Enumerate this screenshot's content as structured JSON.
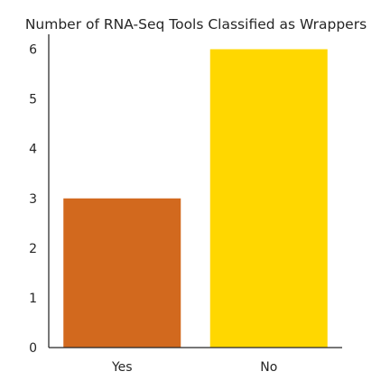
{
  "chart_data": {
    "type": "bar",
    "title": "Number of RNA-Seq Tools Classified as Wrappers",
    "xlabel": "",
    "ylabel": "",
    "categories": [
      "Yes",
      "No"
    ],
    "values": [
      3,
      6
    ],
    "colors": [
      "#d2691e",
      "#ffd700"
    ],
    "yticks": [
      0,
      1,
      2,
      3,
      4,
      5,
      6
    ],
    "ylim": [
      0,
      6.3
    ],
    "grid": false,
    "legend": "none"
  }
}
